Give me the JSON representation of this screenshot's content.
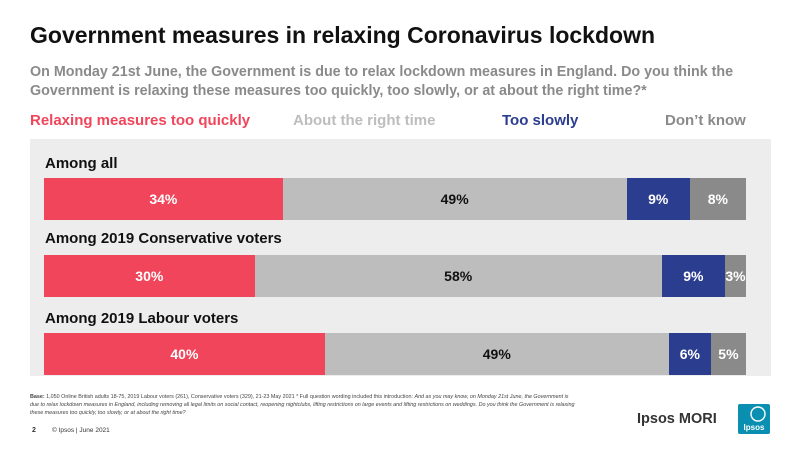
{
  "title": "Government measures in relaxing Coronavirus lockdown",
  "subtitle": "On Monday 21st June, the Government is due to relax lockdown measures in England. Do you think the Government is relaxing these measures too quickly, too slowly, or at about the right time?*",
  "colors": {
    "too_quickly": "#f0455a",
    "right_time": "#bdbdbd",
    "too_slowly": "#2b3d8f",
    "dont_know": "#8a8a8a",
    "panel": "#ededed"
  },
  "chart_data": {
    "type": "bar",
    "orientation": "horizontal",
    "stacked": true,
    "categories": [
      "Among all",
      "Among 2019 Conservative voters",
      "Among 2019 Labour voters"
    ],
    "series": [
      {
        "name": "Relaxing measures too quickly",
        "values": [
          34,
          30,
          40
        ],
        "labels": [
          "34%",
          "30%",
          "40%"
        ]
      },
      {
        "name": "About the right time",
        "values": [
          49,
          58,
          49
        ],
        "labels": [
          "49%",
          "58%",
          "49%"
        ]
      },
      {
        "name": "Too slowly",
        "values": [
          9,
          9,
          6
        ],
        "labels": [
          "9%",
          "9%",
          "6%"
        ]
      },
      {
        "name": "Don’t know",
        "values": [
          8,
          3,
          5
        ],
        "labels": [
          "8%",
          "3%",
          "5%"
        ]
      }
    ],
    "legend_position": "top",
    "unit": "%"
  },
  "footnote": {
    "base_label": "Base:",
    "base_text": " 1,050 Online British adults 18-75, 2019 Labour voters (261), Conservative voters (329), 21-23 May 2021 * Full question wording included this introduction: ",
    "intro_text": "And as you may know, on Monday 21st June, the Government is due to relax lockdown measures in England, including removing all legal limits on social contact, reopening nightclubs, lifting restrictions on large events and lifting restrictions on weddings. Do you think the Government is relaxing these measures too quickly, too slowly, or at about the right time?"
  },
  "footer": {
    "page_number": "2",
    "copyright": "© Ipsos | June 2021",
    "brand": "Ipsos MORI",
    "logo_text": "Ipsos"
  }
}
